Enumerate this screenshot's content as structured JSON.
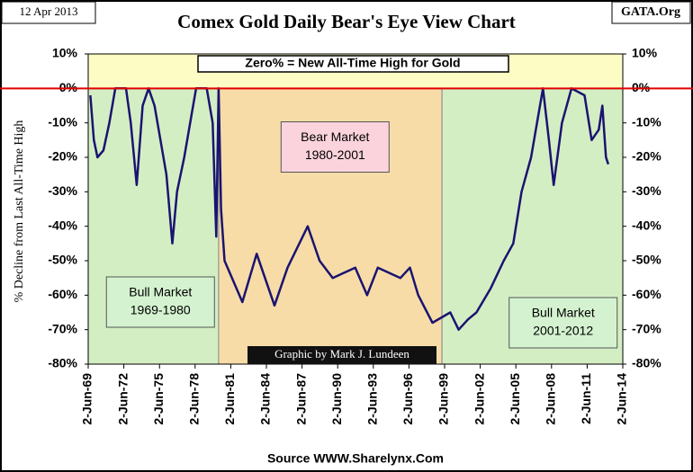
{
  "chart_data": {
    "type": "line",
    "title": "Comex Gold Daily Bear's Eye View Chart",
    "date_label": "12 Apr 2013",
    "brand": "GATA.Org",
    "source": "Source WWW.Sharelynx.Com",
    "credit": "Graphic by Mark J. Lundeen",
    "banner": "Zero% = New All-Time High for Gold",
    "y_label": "% Decline from Last All-Time High",
    "xlim": [
      1969.42,
      2014.42
    ],
    "ylim": [
      -80,
      10
    ],
    "y2lim": [
      -80,
      10
    ],
    "reference_line": 0,
    "xticks": [
      {
        "value": 1969.42,
        "label": "2-Jun-69"
      },
      {
        "value": 1972.42,
        "label": "2-Jun-72"
      },
      {
        "value": 1975.42,
        "label": "2-Jun-75"
      },
      {
        "value": 1978.42,
        "label": "2-Jun-78"
      },
      {
        "value": 1981.42,
        "label": "2-Jun-81"
      },
      {
        "value": 1984.42,
        "label": "2-Jun-84"
      },
      {
        "value": 1987.42,
        "label": "2-Jun-87"
      },
      {
        "value": 1990.42,
        "label": "2-Jun-90"
      },
      {
        "value": 1993.42,
        "label": "2-Jun-93"
      },
      {
        "value": 1996.42,
        "label": "2-Jun-96"
      },
      {
        "value": 1999.42,
        "label": "2-Jun-99"
      },
      {
        "value": 2002.42,
        "label": "2-Jun-02"
      },
      {
        "value": 2005.42,
        "label": "2-Jun-05"
      },
      {
        "value": 2008.42,
        "label": "2-Jun-08"
      },
      {
        "value": 2011.42,
        "label": "2-Jun-11"
      },
      {
        "value": 2014.42,
        "label": "2-Jun-14"
      }
    ],
    "yticks": [
      {
        "value": 10,
        "label": "10%"
      },
      {
        "value": 0,
        "label": "0%"
      },
      {
        "value": -10,
        "label": "-10%"
      },
      {
        "value": -20,
        "label": "-20%"
      },
      {
        "value": -30,
        "label": "-30%"
      },
      {
        "value": -40,
        "label": "-40%"
      },
      {
        "value": -50,
        "label": "-50%"
      },
      {
        "value": -60,
        "label": "-60%"
      },
      {
        "value": -70,
        "label": "-70%"
      },
      {
        "value": -80,
        "label": "-80%"
      }
    ],
    "y2ticks": [
      {
        "value": 10,
        "label": "10%"
      },
      {
        "value": 0,
        "label": "0%"
      },
      {
        "value": -10,
        "label": "-10%"
      },
      {
        "value": -20,
        "label": "-20%"
      },
      {
        "value": -30,
        "label": "-30%"
      },
      {
        "value": -40,
        "label": "-40%"
      },
      {
        "value": -50,
        "label": "-50%"
      },
      {
        "value": -60,
        "label": "-60%"
      },
      {
        "value": -70,
        "label": "-70%"
      },
      {
        "value": -80,
        "label": "-80%"
      }
    ],
    "regions": [
      {
        "label": [
          "Bull Market",
          "1969-1980"
        ],
        "x": [
          1969.42,
          1980.4
        ],
        "color": "#d4eec4",
        "label_color": "#d4f2cf",
        "label_at": [
          1975.5,
          -62
        ]
      },
      {
        "label": [
          "Bear Market",
          "1980-2001"
        ],
        "x": [
          1980.4,
          1999.2
        ],
        "color": "#f8dca8",
        "label_color": "#fbd3dc",
        "label_at": [
          1990.2,
          -17
        ]
      },
      {
        "label": [
          "Bull Market",
          "2001-2012"
        ],
        "x": [
          1999.2,
          2014.42
        ],
        "color": "#d4eec4",
        "label_color": "#d4f2cf",
        "label_at": [
          2009.4,
          -68
        ]
      }
    ],
    "series": [
      {
        "name": "Gold",
        "color": "#1a1470",
        "x": [
          1969.6,
          1969.9,
          1970.2,
          1970.7,
          1971.2,
          1971.7,
          1972.6,
          1973.0,
          1973.5,
          1974.0,
          1974.5,
          1975.0,
          1975.5,
          1976.0,
          1976.5,
          1976.9,
          1977.5,
          1978.1,
          1978.5,
          1979.4,
          1979.9,
          1980.2,
          1980.4,
          1980.6,
          1980.9,
          1982.4,
          1983.6,
          1985.1,
          1986.2,
          1987.9,
          1988.9,
          1990.0,
          1991.9,
          1992.9,
          1993.8,
          1995.7,
          1996.5,
          1997.2,
          1998.4,
          1999.9,
          2000.6,
          2001.4,
          2002.1,
          2003.3,
          2004.4,
          2005.2,
          2005.9,
          2006.7,
          2007.3,
          2007.7,
          2008.2,
          2008.6,
          2009.3,
          2010.1,
          2011.2,
          2011.8,
          2012.4,
          2012.7,
          2013.0,
          2013.2
        ],
        "values": [
          -2,
          -15,
          -20,
          -18,
          -10,
          0,
          0,
          -10,
          -28,
          -5,
          0,
          -5,
          -15,
          -25,
          -45,
          -30,
          -20,
          -8,
          0,
          0,
          -10,
          -43,
          0,
          -35,
          -50,
          -62,
          -48,
          -63,
          -52,
          -40,
          -50,
          -55,
          -52,
          -60,
          -52,
          -55,
          -52,
          -60,
          -68,
          -65,
          -70,
          -67,
          -65,
          -58,
          -50,
          -45,
          -30,
          -20,
          -8,
          0,
          -15,
          -28,
          -10,
          0,
          -2,
          -15,
          -12,
          -5,
          -20,
          -22
        ]
      }
    ]
  }
}
